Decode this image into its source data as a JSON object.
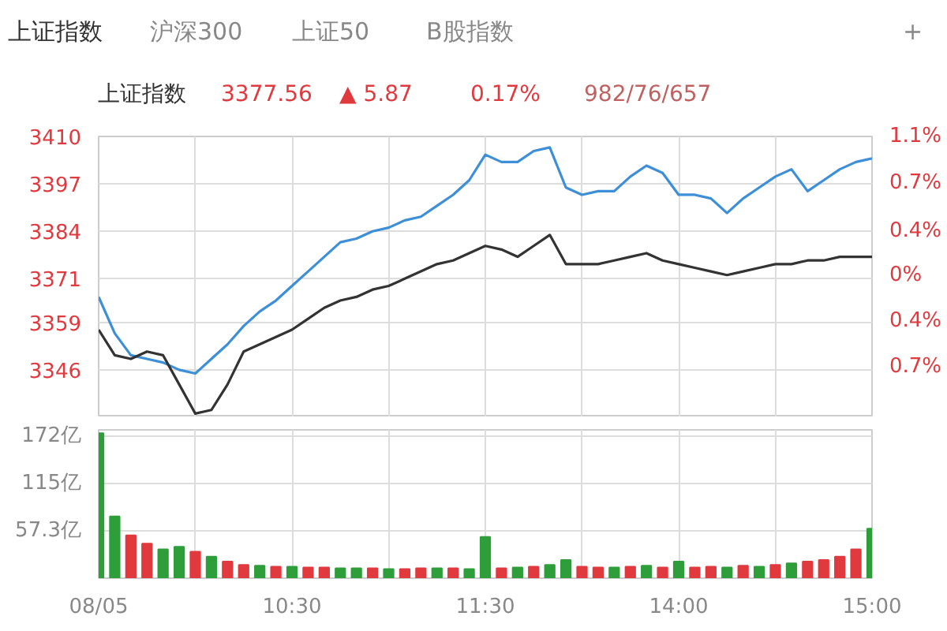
{
  "chart_data": [
    {
      "type": "line",
      "annotations": [
        "上证指数",
        "沪深300",
        "上证50",
        "B股指数",
        "+",
        "上证指数",
        "3377.56",
        "▲ 5.87",
        "0.17%",
        "982/76/657"
      ],
      "categories": [
        null,
        null,
        null,
        null,
        null,
        null,
        null,
        null,
        null,
        null,
        null,
        null,
        null,
        null,
        null,
        null,
        null,
        null,
        null,
        null,
        null,
        null,
        null,
        null,
        null,
        null,
        null,
        null,
        null,
        null,
        null,
        null,
        null,
        null,
        null,
        null,
        null,
        null,
        null,
        null,
        null,
        null,
        null,
        null,
        null,
        null,
        null,
        null,
        null
      ],
      "ylim": [
        3333,
        3410
      ],
      "yticks": [
        3346,
        3359,
        3371,
        3384,
        3397,
        3410
      ],
      "y2lim": [
        -1.15,
        1.13
      ],
      "y2ticks": [
        {
          "value": 1.13,
          "label": "1.1%"
        },
        {
          "value": 0.75,
          "label": "0.7%"
        },
        {
          "value": 0.36,
          "label": "0.4%"
        },
        {
          "value": 0,
          "label": "0%"
        },
        {
          "value": -0.37,
          "label": "0.4%"
        },
        {
          "value": -0.74,
          "label": "0.7%"
        }
      ],
      "grid": true,
      "tick_labels": "y",
      "line_style": "solid",
      "marker": "none",
      "series": [
        {
          "color": "#3d8fd8",
          "values": [
            3366,
            3356,
            3350,
            3349,
            3348,
            3346,
            3345,
            3349,
            3353,
            3358,
            3362,
            3365,
            3369,
            3373,
            3377,
            3381,
            3382,
            3384,
            3385,
            3387,
            3388,
            3391,
            3394,
            3398,
            3405,
            3403,
            3403,
            3406,
            3407,
            3396,
            3394,
            3395,
            3395,
            3399,
            3402,
            3400,
            3394,
            3394,
            3393,
            3389,
            3393,
            3396,
            3399,
            3401,
            3395,
            3398,
            3401,
            3403,
            3404
          ]
        },
        {
          "color": "#333333",
          "values": [
            3357,
            3350,
            3349,
            3351,
            3350,
            3342,
            3334,
            3335,
            3342,
            3351,
            3353,
            3355,
            3357,
            3360,
            3363,
            3365,
            3366,
            3368,
            3369,
            3371,
            3373,
            3375,
            3376,
            3378,
            3380,
            3379,
            3377,
            3380,
            3383,
            3375,
            3375,
            3375,
            3376,
            3377,
            3378,
            3376,
            3375,
            3374,
            3373,
            3372,
            3373,
            3374,
            3375,
            3375,
            3376,
            3376,
            3377,
            3377,
            3377
          ]
        }
      ]
    },
    {
      "type": "bar",
      "categories": [
        "08/05",
        null,
        null,
        null,
        null,
        null,
        null,
        null,
        null,
        null,
        null,
        null,
        "10:30",
        null,
        null,
        null,
        null,
        null,
        null,
        null,
        null,
        null,
        null,
        null,
        "11:30",
        null,
        null,
        null,
        null,
        null,
        null,
        null,
        null,
        null,
        null,
        null,
        "14:00",
        null,
        null,
        null,
        null,
        null,
        null,
        null,
        null,
        null,
        null,
        null,
        "15:00"
      ],
      "values": [
        176,
        75,
        52,
        42,
        35,
        38,
        32,
        26,
        20,
        16,
        15,
        14,
        14,
        13,
        13,
        12,
        12,
        12,
        11,
        11,
        12,
        12,
        12,
        11,
        50,
        12,
        13,
        14,
        16,
        22,
        14,
        13,
        13,
        14,
        15,
        13,
        20,
        13,
        14,
        13,
        15,
        14,
        16,
        18,
        20,
        22,
        26,
        35,
        60
      ],
      "colors": [
        "#2e9e3a",
        "#2e9e3a",
        "#e0393e",
        "#e0393e",
        "#2e9e3a",
        "#2e9e3a",
        "#e0393e",
        "#2e9e3a",
        "#e0393e",
        "#e0393e",
        "#2e9e3a",
        "#e0393e",
        "#2e9e3a",
        "#e0393e",
        "#e0393e",
        "#2e9e3a",
        "#2e9e3a",
        "#e0393e",
        "#2e9e3a",
        "#e0393e",
        "#e0393e",
        "#2e9e3a",
        "#e0393e",
        "#2e9e3a",
        "#2e9e3a",
        "#e0393e",
        "#2e9e3a",
        "#e0393e",
        "#2e9e3a",
        "#2e9e3a",
        "#e0393e",
        "#e0393e",
        "#2e9e3a",
        "#e0393e",
        "#2e9e3a",
        "#e0393e",
        "#2e9e3a",
        "#e0393e",
        "#e0393e",
        "#2e9e3a",
        "#e0393e",
        "#2e9e3a",
        "#e0393e",
        "#2e9e3a",
        "#e0393e",
        "#e0393e",
        "#e0393e",
        "#e0393e",
        "#2e9e3a"
      ],
      "ylim": [
        0,
        180
      ],
      "yticks": [
        {
          "value": 57.3,
          "label": "57.3亿"
        },
        {
          "value": 115,
          "label": "115亿"
        },
        {
          "value": 172,
          "label": "172亿"
        }
      ],
      "grid": true
    }
  ]
}
